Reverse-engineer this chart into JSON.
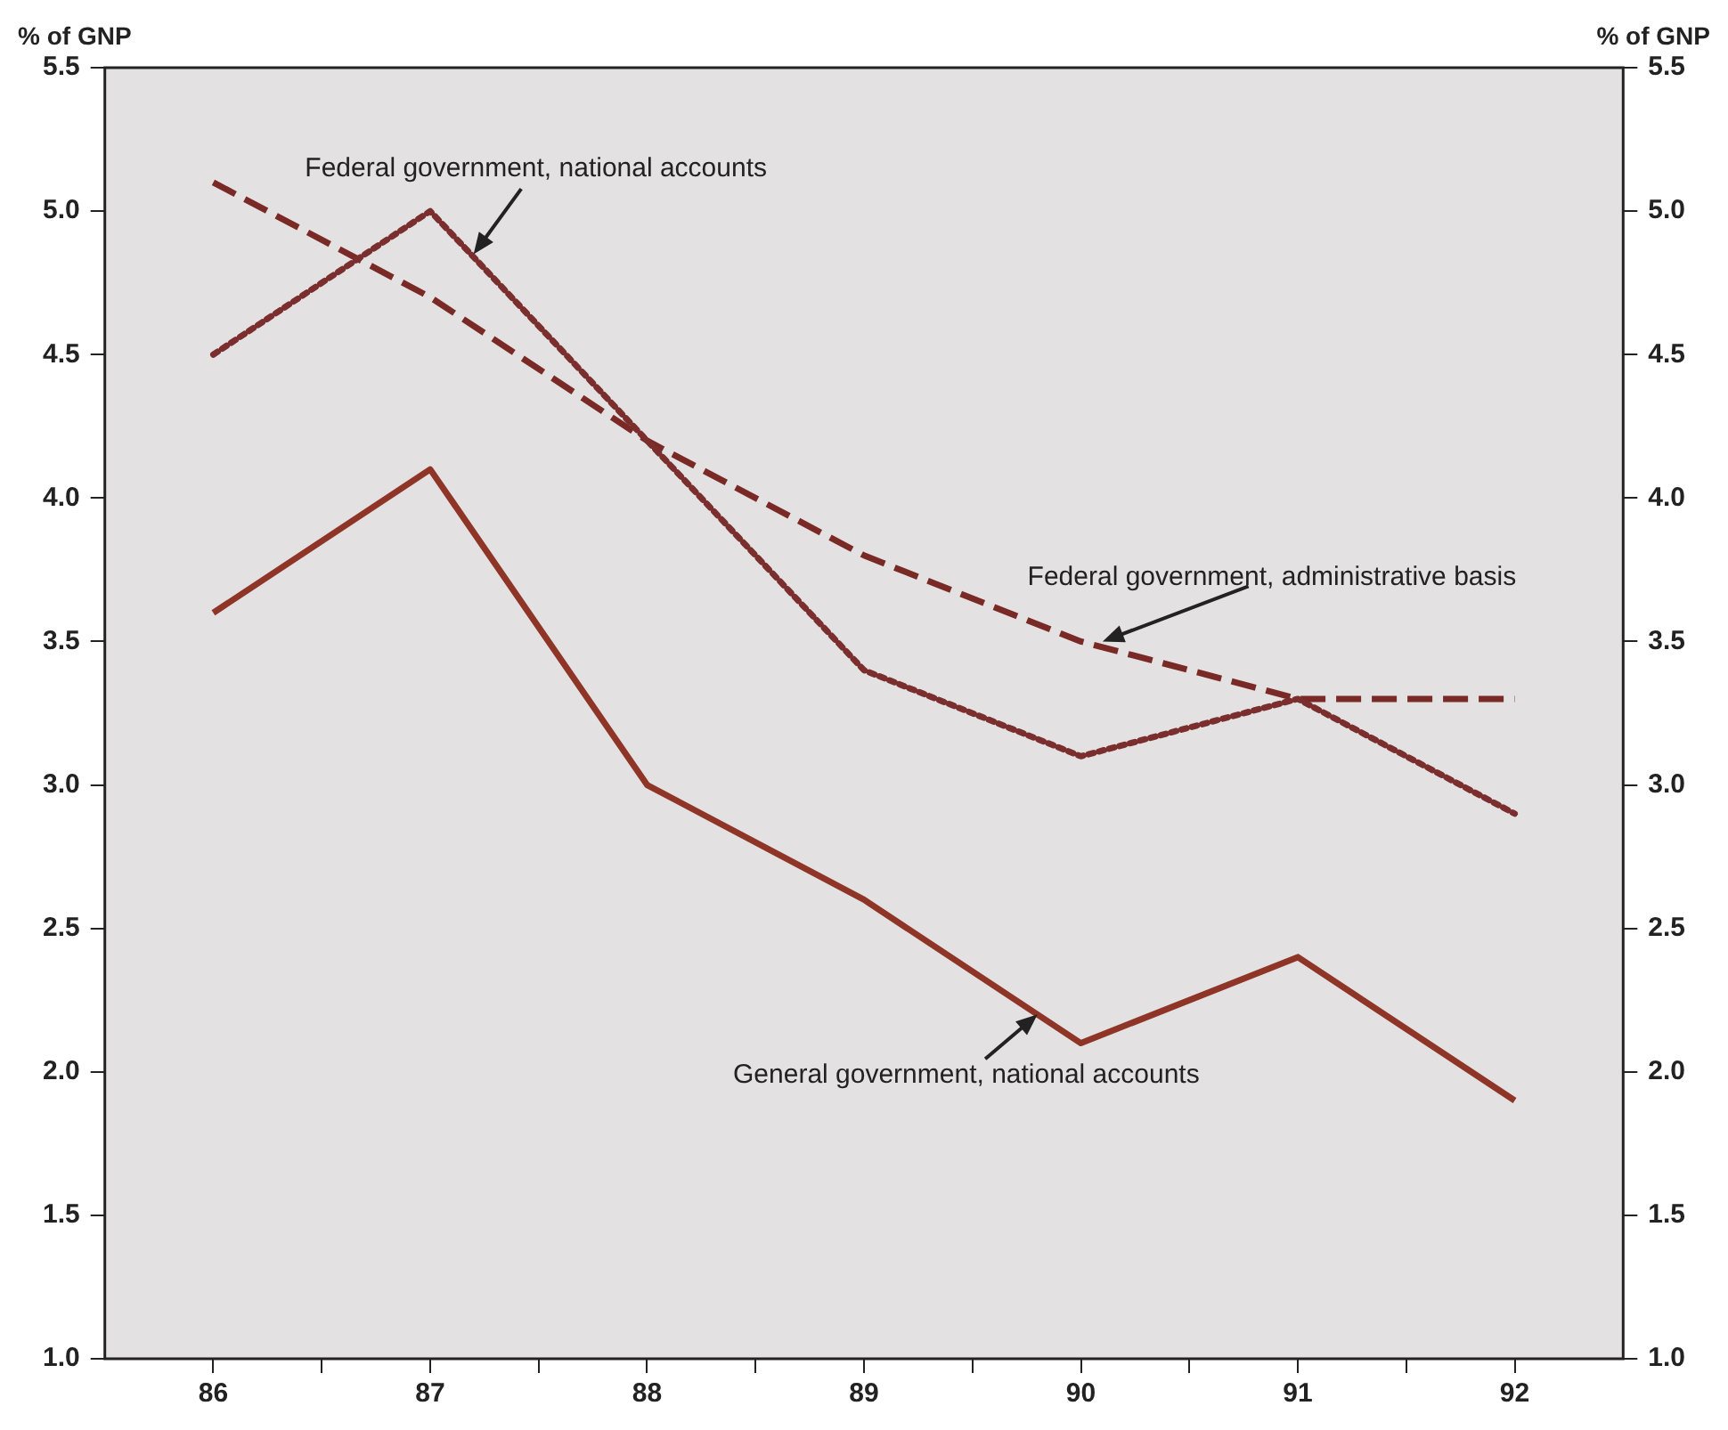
{
  "chart_data": {
    "type": "line",
    "ylabel": "% of GNP",
    "y2label": "% of GNP",
    "x": [
      86,
      87,
      88,
      89,
      90,
      91,
      92
    ],
    "xlim": [
      85.5,
      92.5
    ],
    "xticks": [
      86,
      {
        "value": 86.5,
        "label": null
      },
      87,
      {
        "value": 87.5,
        "label": null
      },
      88,
      {
        "value": 88.5,
        "label": null
      },
      89,
      {
        "value": 89.5,
        "label": null
      },
      90,
      {
        "value": 90.5,
        "label": null
      },
      91,
      {
        "value": 91.5,
        "label": null
      },
      92
    ],
    "ylim": [
      1.0,
      5.5
    ],
    "yticks": [
      {
        "value": 1,
        "label": "1.0"
      },
      1.5,
      {
        "value": 2,
        "label": "2.0"
      },
      2.5,
      {
        "value": 3,
        "label": "3.0"
      },
      3.5,
      {
        "value": 4,
        "label": "4.0"
      },
      4.5,
      {
        "value": 5,
        "label": "5.0"
      },
      5.5
    ],
    "y2lim": [
      1.0,
      5.5
    ],
    "y2ticks": [
      {
        "value": 1,
        "label": "1.0"
      },
      1.5,
      {
        "value": 2,
        "label": "2.0"
      },
      2.5,
      {
        "value": 3,
        "label": "3.0"
      },
      3.5,
      {
        "value": 4,
        "label": "4.0"
      },
      4.5,
      {
        "value": 5,
        "label": "5.0"
      },
      5.5
    ],
    "series": [
      {
        "color": "#8e3528",
        "line_style": "solid",
        "values": [
          3.6,
          4.1,
          3.0,
          2.6,
          2.1,
          2.4,
          1.9
        ]
      },
      {
        "color": "#7a2e2e",
        "line_style": "dotted",
        "values": [
          4.5,
          5.0,
          4.2,
          3.4,
          3.1,
          3.3,
          2.9
        ]
      },
      {
        "color": "#7a2a26",
        "line_style": "dashed",
        "values": [
          5.1,
          4.7,
          4.2,
          3.8,
          3.5,
          3.3,
          3.3
        ]
      }
    ],
    "annotations": [
      {
        "text": "Federal government, national accounts",
        "x": 87.2,
        "y": 4.85
      },
      {
        "text": "Federal government, administrative basis",
        "x": 90.1,
        "y": 3.5
      },
      {
        "text": "General government, national accounts",
        "x": 89.8,
        "y": 2.2
      }
    ],
    "marker": "none",
    "grid": false,
    "legend": false
  }
}
